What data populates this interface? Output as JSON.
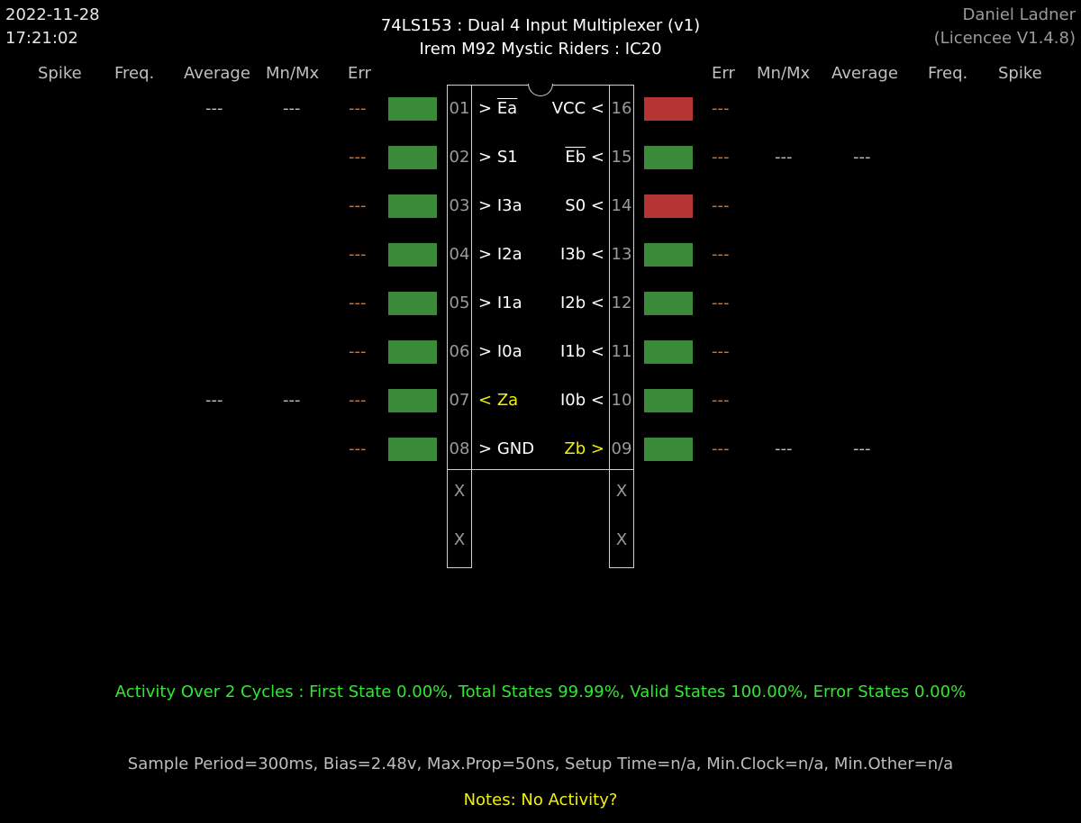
{
  "header": {
    "date": "2022-11-28",
    "time": "17:21:02",
    "title": "74LS153  :  Dual 4 Input Multiplexer (v1)",
    "subtitle": "Irem M92 Mystic Riders : IC20",
    "author": "Daniel Ladner",
    "licence": "(Licencee V1.4.8)"
  },
  "columns": {
    "left": [
      "Spike",
      "Freq.",
      "Average",
      "Mn/Mx",
      "Err"
    ],
    "right": [
      "Err",
      "Mn/Mx",
      "Average",
      "Freq.",
      "Spike"
    ]
  },
  "left_pins": [
    {
      "num": "01",
      "prefix": "> ",
      "label": "Ea",
      "overline": true,
      "state": "green",
      "err": "---",
      "mnmx": "---",
      "avg": "---",
      "output": false
    },
    {
      "num": "02",
      "prefix": "> ",
      "label": "S1",
      "overline": false,
      "state": "green",
      "err": "---",
      "mnmx": "",
      "avg": "",
      "output": false
    },
    {
      "num": "03",
      "prefix": "> ",
      "label": "I3a",
      "overline": false,
      "state": "green",
      "err": "---",
      "mnmx": "",
      "avg": "",
      "output": false
    },
    {
      "num": "04",
      "prefix": "> ",
      "label": "I2a",
      "overline": false,
      "state": "green",
      "err": "---",
      "mnmx": "",
      "avg": "",
      "output": false
    },
    {
      "num": "05",
      "prefix": "> ",
      "label": "I1a",
      "overline": false,
      "state": "green",
      "err": "---",
      "mnmx": "",
      "avg": "",
      "output": false
    },
    {
      "num": "06",
      "prefix": "> ",
      "label": "I0a",
      "overline": false,
      "state": "green",
      "err": "---",
      "mnmx": "",
      "avg": "",
      "output": false
    },
    {
      "num": "07",
      "prefix": "< ",
      "label": "Za",
      "overline": false,
      "state": "green",
      "err": "---",
      "mnmx": "---",
      "avg": "---",
      "output": true
    },
    {
      "num": "08",
      "prefix": "> ",
      "label": "GND",
      "overline": false,
      "state": "green",
      "err": "---",
      "mnmx": "",
      "avg": "",
      "output": false
    }
  ],
  "right_pins": [
    {
      "num": "16",
      "suffix": " <",
      "label": "VCC",
      "overline": false,
      "state": "red",
      "err": "---",
      "mnmx": "",
      "avg": "",
      "output": false
    },
    {
      "num": "15",
      "suffix": " <",
      "label": "Eb",
      "overline": true,
      "state": "green",
      "err": "---",
      "mnmx": "---",
      "avg": "---",
      "output": false
    },
    {
      "num": "14",
      "suffix": " <",
      "label": "S0",
      "overline": false,
      "state": "red",
      "err": "---",
      "mnmx": "",
      "avg": "",
      "output": false
    },
    {
      "num": "13",
      "suffix": " <",
      "label": "I3b",
      "overline": false,
      "state": "green",
      "err": "---",
      "mnmx": "",
      "avg": "",
      "output": false
    },
    {
      "num": "12",
      "suffix": " <",
      "label": "I2b",
      "overline": false,
      "state": "green",
      "err": "---",
      "mnmx": "",
      "avg": "",
      "output": false
    },
    {
      "num": "11",
      "suffix": " <",
      "label": "I1b",
      "overline": false,
      "state": "green",
      "err": "---",
      "mnmx": "",
      "avg": "",
      "output": false
    },
    {
      "num": "10",
      "suffix": " <",
      "label": "I0b",
      "overline": false,
      "state": "green",
      "err": "---",
      "mnmx": "",
      "avg": "",
      "output": false
    },
    {
      "num": "09",
      "suffix": " >",
      "label": "Zb",
      "overline": false,
      "state": "green",
      "err": "---",
      "mnmx": "---",
      "avg": "---",
      "output": true
    }
  ],
  "unused_pins": {
    "left": [
      "X",
      "X"
    ],
    "right": [
      "X",
      "X"
    ]
  },
  "colors": {
    "led_green": "#3a8a3a",
    "led_red": "#b53535",
    "err_orange": "#e0701a",
    "output_yellow": "#f2f200",
    "activity_green": "#33e633"
  },
  "footer": {
    "activity": "Activity Over 2 Cycles  :  First State 0.00%,  Total States 99.99%,  Valid States 100.00%,  Error States 0.00%",
    "sample": "Sample Period=300ms,  Bias=2.48v,  Max.Prop=50ns,  Setup Time=n/a,  Min.Clock=n/a,  Min.Other=n/a",
    "notes": "Notes:  No Activity?"
  }
}
